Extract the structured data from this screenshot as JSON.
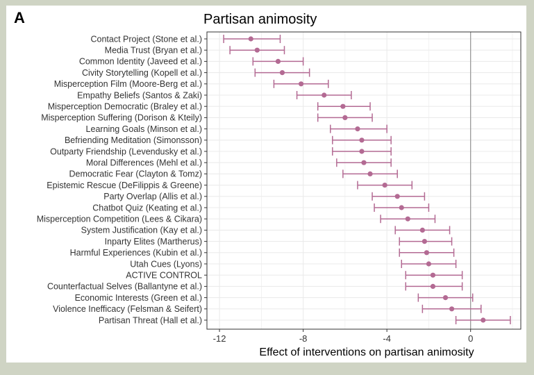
{
  "panel_label": "A",
  "chart_data": {
    "type": "forest",
    "title": "Partisan animosity",
    "xlabel": "Effect of interventions on partisan animosity",
    "xlim": [
      -12.6,
      2.4
    ],
    "xticks": [
      -12,
      -8,
      -4,
      0
    ],
    "reference_line": 0,
    "grid": true,
    "colors": {
      "point": "#b36a93",
      "reference": "#9a9a9a",
      "grid": "#ebebeb",
      "border": "#333333"
    },
    "rows": [
      {
        "label": "Contact Project (Stone et al.)",
        "estimate": -10.5,
        "lower": -11.8,
        "upper": -9.1
      },
      {
        "label": "Media Trust (Bryan et al.)",
        "estimate": -10.2,
        "lower": -11.5,
        "upper": -8.9
      },
      {
        "label": "Common Identity (Javeed et al.)",
        "estimate": -9.2,
        "lower": -10.4,
        "upper": -8.0
      },
      {
        "label": "Civity Storytelling (Kopell et al.)",
        "estimate": -9.0,
        "lower": -10.3,
        "upper": -7.7
      },
      {
        "label": "Misperception Film (Moore-Berg et al.)",
        "estimate": -8.1,
        "lower": -9.4,
        "upper": -6.8
      },
      {
        "label": "Empathy Beliefs (Santos & Zaki)",
        "estimate": -7.0,
        "lower": -8.3,
        "upper": -5.7
      },
      {
        "label": "Misperception Democratic (Braley et al.)",
        "estimate": -6.1,
        "lower": -7.3,
        "upper": -4.8
      },
      {
        "label": "Misperception Suffering (Dorison & Kteily)",
        "estimate": -6.0,
        "lower": -7.3,
        "upper": -4.7
      },
      {
        "label": "Learning Goals (Minson et al.)",
        "estimate": -5.4,
        "lower": -6.7,
        "upper": -4.0
      },
      {
        "label": "Befriending Meditation (Simonsson)",
        "estimate": -5.2,
        "lower": -6.6,
        "upper": -3.8
      },
      {
        "label": "Outparty Friendship (Levendusky et al.)",
        "estimate": -5.2,
        "lower": -6.6,
        "upper": -3.8
      },
      {
        "label": "Moral Differences (Mehl et al.)",
        "estimate": -5.1,
        "lower": -6.4,
        "upper": -3.8
      },
      {
        "label": "Democratic Fear (Clayton & Tomz)",
        "estimate": -4.8,
        "lower": -6.1,
        "upper": -3.5
      },
      {
        "label": "Epistemic Rescue (DeFilippis & Greene)",
        "estimate": -4.1,
        "lower": -5.4,
        "upper": -2.8
      },
      {
        "label": "Party Overlap (Allis et al.)",
        "estimate": -3.5,
        "lower": -4.7,
        "upper": -2.2
      },
      {
        "label": "Chatbot Quiz (Keating et al.)",
        "estimate": -3.3,
        "lower": -4.6,
        "upper": -2.0
      },
      {
        "label": "Misperception Competition (Lees & Cikara)",
        "estimate": -3.0,
        "lower": -4.3,
        "upper": -1.7
      },
      {
        "label": "System Justification (Kay et al.)",
        "estimate": -2.3,
        "lower": -3.6,
        "upper": -1.0
      },
      {
        "label": "Inparty Elites (Martherus)",
        "estimate": -2.2,
        "lower": -3.4,
        "upper": -0.9
      },
      {
        "label": "Harmful Experiences (Kubin et al.)",
        "estimate": -2.1,
        "lower": -3.4,
        "upper": -0.8
      },
      {
        "label": "Utah Cues (Lyons)",
        "estimate": -2.0,
        "lower": -3.3,
        "upper": -0.7
      },
      {
        "label": "ACTIVE CONTROL",
        "estimate": -1.8,
        "lower": -3.1,
        "upper": -0.4
      },
      {
        "label": "Counterfactual Selves (Ballantyne et al.)",
        "estimate": -1.8,
        "lower": -3.1,
        "upper": -0.4
      },
      {
        "label": "Economic Interests (Green et al.)",
        "estimate": -1.2,
        "lower": -2.5,
        "upper": 0.1
      },
      {
        "label": "Violence Inefficacy (Felsman & Seifert)",
        "estimate": -0.9,
        "lower": -2.3,
        "upper": 0.5
      },
      {
        "label": "Partisan Threat (Hall et al.)",
        "estimate": 0.6,
        "lower": -0.7,
        "upper": 1.9
      }
    ]
  }
}
